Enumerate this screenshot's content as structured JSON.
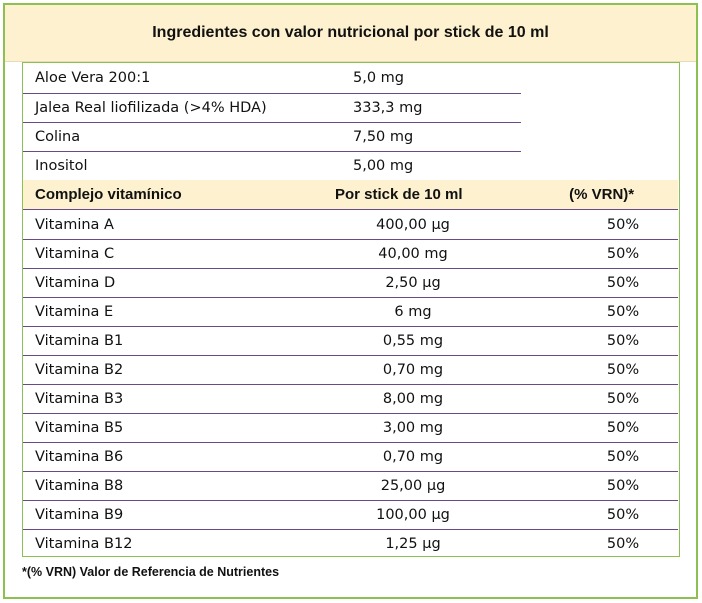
{
  "title": "Ingredientes con valor nutricional por stick de 10 ml",
  "ingredients": [
    {
      "name": "Aloe Vera 200:1",
      "amount": "5,0 mg"
    },
    {
      "name": "Jalea Real liofilizada (>4% HDA)",
      "amount": "333,3 mg"
    },
    {
      "name": "Colina",
      "amount": "7,50 mg"
    },
    {
      "name": "Inositol",
      "amount": "5,00 mg"
    }
  ],
  "vitamin_header": {
    "col1": "Complejo vitamínico",
    "col2": "Por stick de 10 ml",
    "col3": "(% VRN)*"
  },
  "vitamins": [
    {
      "name": "Vitamina A",
      "amount": "400,00 µg",
      "vrn": "50%"
    },
    {
      "name": "Vitamina C",
      "amount": "40,00 mg",
      "vrn": "50%"
    },
    {
      "name": "Vitamina D",
      "amount": "2,50 µg",
      "vrn": "50%"
    },
    {
      "name": "Vitamina E",
      "amount": "6 mg",
      "vrn": "50%"
    },
    {
      "name": "Vitamina B1",
      "amount": "0,55 mg",
      "vrn": "50%"
    },
    {
      "name": "Vitamina B2",
      "amount": "0,70 mg",
      "vrn": "50%"
    },
    {
      "name": "Vitamina B3",
      "amount": "8,00 mg",
      "vrn": "50%"
    },
    {
      "name": "Vitamina B5",
      "amount": "3,00 mg",
      "vrn": "50%"
    },
    {
      "name": "Vitamina B6",
      "amount": "0,70 mg",
      "vrn": "50%"
    },
    {
      "name": "Vitamina B8",
      "amount": "25,00 µg",
      "vrn": "50%"
    },
    {
      "name": "Vitamina B9",
      "amount": "100,00 µg",
      "vrn": "50%"
    },
    {
      "name": "Vitamina B12",
      "amount": "1,25 µg",
      "vrn": "50%"
    }
  ],
  "footnote": "*(% VRN) Valor de Referencia de Nutrientes",
  "colors": {
    "border": "#8cc152",
    "header_bg": "#fdf1cf",
    "row_separator": "#6a4a86"
  }
}
